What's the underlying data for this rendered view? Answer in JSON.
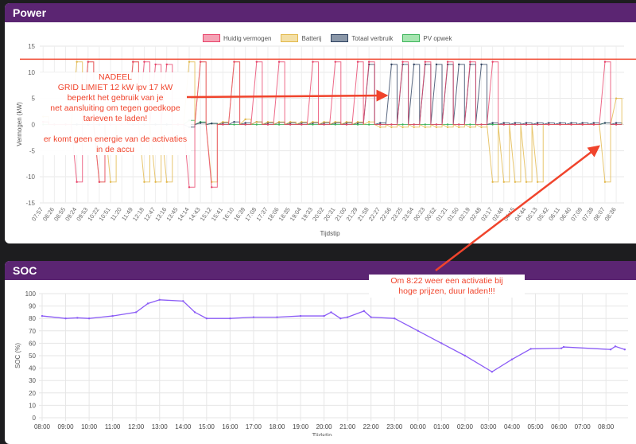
{
  "power": {
    "title": "Power",
    "legend": [
      {
        "label": "Huidig vermogen",
        "color": "#f4a3b5",
        "stroke": "#e8436a"
      },
      {
        "label": "Batterij",
        "color": "#f3dfa6",
        "stroke": "#e2b84a"
      },
      {
        "label": "Totaal verbruik",
        "color": "#8a97a8",
        "stroke": "#2e4160"
      },
      {
        "label": "PV opwek",
        "color": "#a6e5b0",
        "stroke": "#3cb45a"
      }
    ],
    "annotation": [
      "NADEEL",
      "GRID LIMIET 12 kW ipv 17 kW",
      "beperkt het gebruik van je",
      "net aansluiting om tegen goedkope",
      "tarieven te laden!",
      "",
      "er komt geen energie van de activaties",
      "in de accu"
    ],
    "annotation_color": "#f0442c",
    "limit_line_kw": 12.5
  },
  "soc": {
    "title": "SOC",
    "annotation": [
      "Om 8:22 weer een activatie bij",
      "hoge prijzen, duur laden!!!"
    ]
  },
  "chart_data": [
    {
      "type": "line",
      "ylabel": "Vermogen (kW)",
      "xlabel": "Tijdstip",
      "ylim": [
        -15,
        15
      ],
      "yticks": [
        15,
        10,
        5,
        0,
        -5,
        -10,
        -15
      ],
      "grid": true,
      "legend_placement": "top",
      "categories": [
        "07:57",
        "08:26",
        "08:55",
        "09:24",
        "09:53",
        "10:22",
        "10:51",
        "11:20",
        "11:49",
        "12:18",
        "12:47",
        "13:16",
        "13:45",
        "14:14",
        "14:43",
        "15:12",
        "15:41",
        "16:10",
        "16:39",
        "17:08",
        "17:37",
        "18:06",
        "18:35",
        "19:04",
        "19:33",
        "20:02",
        "20:31",
        "21:00",
        "21:29",
        "21:58",
        "22:27",
        "22:56",
        "23:25",
        "23:54",
        "00:23",
        "00:52",
        "01:21",
        "01:50",
        "02:19",
        "02:48",
        "03:17",
        "03:46",
        "04:15",
        "04:44",
        "05:13",
        "05:42",
        "06:11",
        "06:40",
        "07:09",
        "07:38",
        "08:07",
        "08:36"
      ],
      "series": [
        {
          "name": "Huidig vermogen",
          "values": [
            0.5,
            0,
            0,
            -11,
            12,
            -11,
            0,
            0,
            12,
            12,
            11.5,
            11.5,
            0,
            -12,
            12,
            -12,
            0,
            12,
            0,
            12,
            0,
            12,
            0,
            0,
            12,
            0,
            12,
            0,
            12,
            12,
            0,
            0,
            12,
            0,
            12,
            0,
            12,
            0,
            12,
            0,
            12,
            0,
            0,
            0,
            0,
            0,
            0,
            0,
            0,
            0,
            12,
            0
          ]
        },
        {
          "name": "Batterij",
          "values": [
            1.5,
            0,
            0,
            12,
            12,
            -11,
            -11,
            0,
            12,
            -11,
            -11,
            -11,
            0,
            12,
            12,
            -11,
            0.5,
            12,
            1,
            0.5,
            0.5,
            0.5,
            0.5,
            0.5,
            0.5,
            0.5,
            0.5,
            0.5,
            0.5,
            0.5,
            -0.5,
            -0.5,
            -0.5,
            -0.5,
            -0.5,
            -0.5,
            -0.5,
            -0.5,
            -0.5,
            -0.5,
            -11,
            -11,
            -11,
            -11,
            -11,
            0,
            0,
            0,
            0,
            0,
            -11,
            5
          ]
        },
        {
          "name": "Totaal verbruik",
          "values": [
            0.5,
            0,
            0,
            0,
            0,
            0,
            0,
            0,
            0,
            0,
            0,
            0,
            0,
            -0.5,
            0.3,
            0.2,
            0.3,
            0.5,
            0.3,
            0.5,
            0.3,
            0.4,
            0.3,
            0.3,
            0.3,
            0.3,
            0.3,
            0.3,
            0.3,
            11.5,
            0.3,
            11.5,
            11.5,
            11.5,
            11.5,
            11.5,
            11.5,
            11.5,
            11.5,
            11.5,
            0.3,
            0.3,
            0.3,
            0.3,
            0.3,
            0.3,
            0.3,
            0.3,
            0.3,
            0.3,
            0.3,
            0.3
          ]
        },
        {
          "name": "PV opwek",
          "values": [
            0,
            0,
            0,
            0,
            0,
            0,
            0,
            0,
            0,
            0,
            0,
            0,
            0,
            0.8,
            0.5,
            0.2,
            0,
            0,
            0,
            0,
            0,
            0,
            0,
            0,
            0,
            0,
            0,
            0,
            0,
            0,
            0,
            0,
            0,
            0,
            0,
            0,
            0,
            0,
            0,
            0,
            0,
            0,
            0,
            0,
            0,
            0,
            0,
            0,
            0,
            0,
            0.3,
            0
          ]
        }
      ]
    },
    {
      "type": "line",
      "ylabel": "SOC (%)",
      "xlabel": "Tijdstip",
      "ylim": [
        0,
        100
      ],
      "yticks": [
        100,
        90,
        80,
        70,
        60,
        50,
        40,
        30,
        20,
        10,
        0
      ],
      "grid": true,
      "xticks": [
        "08:00",
        "09:00",
        "10:00",
        "11:00",
        "12:00",
        "13:00",
        "14:00",
        "15:00",
        "16:00",
        "17:00",
        "18:00",
        "19:00",
        "20:00",
        "21:00",
        "22:00",
        "23:00",
        "00:00",
        "01:00",
        "02:00",
        "03:00",
        "04:00",
        "05:00",
        "06:00",
        "07:00",
        "08:00"
      ],
      "color": "#8b5cf6",
      "points_hours_since_start": [
        [
          0,
          82
        ],
        [
          1,
          80
        ],
        [
          1.5,
          80.5
        ],
        [
          2,
          80
        ],
        [
          3,
          82
        ],
        [
          4,
          85
        ],
        [
          4.5,
          92
        ],
        [
          5,
          95
        ],
        [
          6,
          94
        ],
        [
          6.5,
          85
        ],
        [
          7,
          80
        ],
        [
          8,
          80
        ],
        [
          9,
          81
        ],
        [
          10,
          81
        ],
        [
          11,
          82
        ],
        [
          12,
          82
        ],
        [
          12.3,
          85
        ],
        [
          12.7,
          80
        ],
        [
          13,
          81
        ],
        [
          13.7,
          86
        ],
        [
          14,
          81
        ],
        [
          15,
          80
        ],
        [
          16,
          70
        ],
        [
          17,
          60
        ],
        [
          18,
          50
        ],
        [
          19.15,
          37
        ],
        [
          20,
          47
        ],
        [
          20.8,
          55.5
        ],
        [
          22.1,
          56
        ],
        [
          22.2,
          57
        ],
        [
          24.2,
          55
        ],
        [
          24.4,
          57.5
        ],
        [
          24.8,
          55
        ]
      ]
    }
  ]
}
